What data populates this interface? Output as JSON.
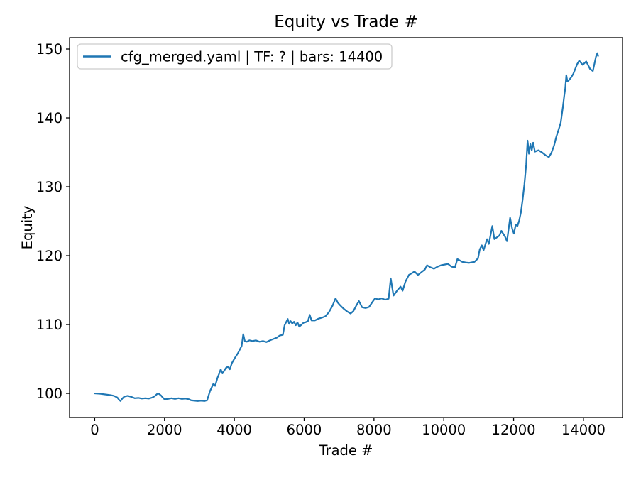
{
  "figure": {
    "background": "#ffffff",
    "text_color": "#000000",
    "spine_color": "#000000",
    "legend_border_color": "#cccccc"
  },
  "chart_data": {
    "type": "line",
    "title": "Equity vs Trade #",
    "xlabel": "Trade #",
    "ylabel": "Equity",
    "grid": false,
    "legend_position": "upper left",
    "xlim": [
      -720,
      15120
    ],
    "ylim": [
      96.5,
      151.65
    ],
    "x_ticks": [
      0,
      2000,
      4000,
      6000,
      8000,
      10000,
      12000,
      14000
    ],
    "y_ticks": [
      100,
      110,
      120,
      130,
      140,
      150
    ],
    "series": [
      {
        "name": "cfg_merged.yaml | TF: ? | bars: 14400",
        "color": "#1f77b4",
        "points": [
          [
            0,
            100
          ],
          [
            150,
            99.95
          ],
          [
            300,
            99.85
          ],
          [
            450,
            99.75
          ],
          [
            550,
            99.65
          ],
          [
            650,
            99.4
          ],
          [
            700,
            99.05
          ],
          [
            740,
            98.9
          ],
          [
            790,
            99.25
          ],
          [
            850,
            99.55
          ],
          [
            950,
            99.65
          ],
          [
            1050,
            99.5
          ],
          [
            1150,
            99.3
          ],
          [
            1250,
            99.35
          ],
          [
            1350,
            99.25
          ],
          [
            1450,
            99.3
          ],
          [
            1550,
            99.25
          ],
          [
            1650,
            99.4
          ],
          [
            1720,
            99.6
          ],
          [
            1805,
            100
          ],
          [
            1850,
            99.9
          ],
          [
            1900,
            99.7
          ],
          [
            1950,
            99.4
          ],
          [
            2000,
            99.15
          ],
          [
            2100,
            99.2
          ],
          [
            2200,
            99.3
          ],
          [
            2300,
            99.2
          ],
          [
            2400,
            99.3
          ],
          [
            2500,
            99.2
          ],
          [
            2600,
            99.25
          ],
          [
            2700,
            99.15
          ],
          [
            2760,
            99
          ],
          [
            2850,
            98.95
          ],
          [
            2950,
            98.9
          ],
          [
            3050,
            98.95
          ],
          [
            3150,
            98.9
          ],
          [
            3220,
            99
          ],
          [
            3300,
            100.3
          ],
          [
            3400,
            101.4
          ],
          [
            3450,
            101.1
          ],
          [
            3520,
            102.3
          ],
          [
            3560,
            102.8
          ],
          [
            3610,
            103.5
          ],
          [
            3660,
            102.9
          ],
          [
            3710,
            103.3
          ],
          [
            3760,
            103.7
          ],
          [
            3820,
            103.9
          ],
          [
            3870,
            103.5
          ],
          [
            3930,
            104.4
          ],
          [
            4010,
            105.1
          ],
          [
            4110,
            105.9
          ],
          [
            4210,
            106.9
          ],
          [
            4255,
            108.6
          ],
          [
            4300,
            107.6
          ],
          [
            4360,
            107.5
          ],
          [
            4430,
            107.7
          ],
          [
            4520,
            107.6
          ],
          [
            4620,
            107.7
          ],
          [
            4720,
            107.5
          ],
          [
            4820,
            107.6
          ],
          [
            4920,
            107.45
          ],
          [
            5020,
            107.7
          ],
          [
            5120,
            107.9
          ],
          [
            5220,
            108.1
          ],
          [
            5300,
            108.4
          ],
          [
            5390,
            108.5
          ],
          [
            5440,
            109.9
          ],
          [
            5490,
            110.4
          ],
          [
            5530,
            110.8
          ],
          [
            5570,
            110.1
          ],
          [
            5610,
            110.5
          ],
          [
            5660,
            110.15
          ],
          [
            5710,
            110.4
          ],
          [
            5760,
            109.9
          ],
          [
            5810,
            110.3
          ],
          [
            5860,
            109.7
          ],
          [
            5920,
            109.95
          ],
          [
            5980,
            110.25
          ],
          [
            6050,
            110.35
          ],
          [
            6110,
            110.5
          ],
          [
            6160,
            111.4
          ],
          [
            6210,
            110.6
          ],
          [
            6310,
            110.6
          ],
          [
            6410,
            110.85
          ],
          [
            6510,
            111
          ],
          [
            6610,
            111.2
          ],
          [
            6710,
            111.8
          ],
          [
            6810,
            112.7
          ],
          [
            6900,
            113.8
          ],
          [
            6960,
            113.2
          ],
          [
            7030,
            112.8
          ],
          [
            7120,
            112.35
          ],
          [
            7230,
            111.9
          ],
          [
            7330,
            111.6
          ],
          [
            7410,
            111.95
          ],
          [
            7510,
            112.9
          ],
          [
            7570,
            113.4
          ],
          [
            7660,
            112.5
          ],
          [
            7760,
            112.4
          ],
          [
            7860,
            112.55
          ],
          [
            7960,
            113.3
          ],
          [
            8030,
            113.8
          ],
          [
            8120,
            113.65
          ],
          [
            8220,
            113.8
          ],
          [
            8320,
            113.6
          ],
          [
            8420,
            113.75
          ],
          [
            8480,
            116.7
          ],
          [
            8560,
            114.2
          ],
          [
            8660,
            114.9
          ],
          [
            8760,
            115.5
          ],
          [
            8820,
            114.9
          ],
          [
            8900,
            116.2
          ],
          [
            9000,
            117.2
          ],
          [
            9100,
            117.5
          ],
          [
            9160,
            117.7
          ],
          [
            9260,
            117.2
          ],
          [
            9360,
            117.6
          ],
          [
            9460,
            118
          ],
          [
            9520,
            118.6
          ],
          [
            9620,
            118.3
          ],
          [
            9720,
            118.1
          ],
          [
            9820,
            118.4
          ],
          [
            9920,
            118.6
          ],
          [
            10020,
            118.7
          ],
          [
            10120,
            118.8
          ],
          [
            10220,
            118.4
          ],
          [
            10320,
            118.3
          ],
          [
            10390,
            119.5
          ],
          [
            10460,
            119.3
          ],
          [
            10530,
            119.1
          ],
          [
            10630,
            119
          ],
          [
            10730,
            118.95
          ],
          [
            10880,
            119.1
          ],
          [
            10980,
            119.6
          ],
          [
            11030,
            120.9
          ],
          [
            11090,
            121.5
          ],
          [
            11140,
            120.8
          ],
          [
            11240,
            122.4
          ],
          [
            11290,
            121.7
          ],
          [
            11390,
            124.3
          ],
          [
            11450,
            122.4
          ],
          [
            11590,
            122.9
          ],
          [
            11650,
            123.6
          ],
          [
            11750,
            122.8
          ],
          [
            11810,
            122.1
          ],
          [
            11900,
            125.5
          ],
          [
            11960,
            123.9
          ],
          [
            12010,
            123.2
          ],
          [
            12060,
            124.5
          ],
          [
            12110,
            124.3
          ],
          [
            12160,
            125.1
          ],
          [
            12210,
            126.3
          ],
          [
            12260,
            128.2
          ],
          [
            12310,
            130.4
          ],
          [
            12360,
            133.2
          ],
          [
            12400,
            136.7
          ],
          [
            12440,
            134.8
          ],
          [
            12480,
            136.2
          ],
          [
            12520,
            135.3
          ],
          [
            12560,
            136.4
          ],
          [
            12610,
            135.1
          ],
          [
            12710,
            135.3
          ],
          [
            12810,
            135
          ],
          [
            12910,
            134.6
          ],
          [
            13010,
            134.3
          ],
          [
            13080,
            134.9
          ],
          [
            13160,
            136
          ],
          [
            13220,
            137.2
          ],
          [
            13290,
            138.3
          ],
          [
            13350,
            139.3
          ],
          [
            13410,
            141.5
          ],
          [
            13450,
            143.2
          ],
          [
            13480,
            144.3
          ],
          [
            13510,
            146.2
          ],
          [
            13540,
            145.3
          ],
          [
            13590,
            145.5
          ],
          [
            13650,
            145.9
          ],
          [
            13710,
            146.4
          ],
          [
            13820,
            147.8
          ],
          [
            13880,
            148.3
          ],
          [
            13980,
            147.7
          ],
          [
            14080,
            148.2
          ],
          [
            14190,
            147.1
          ],
          [
            14270,
            146.8
          ],
          [
            14360,
            148.9
          ],
          [
            14400,
            149.4
          ],
          [
            14420,
            149
          ]
        ]
      }
    ]
  }
}
